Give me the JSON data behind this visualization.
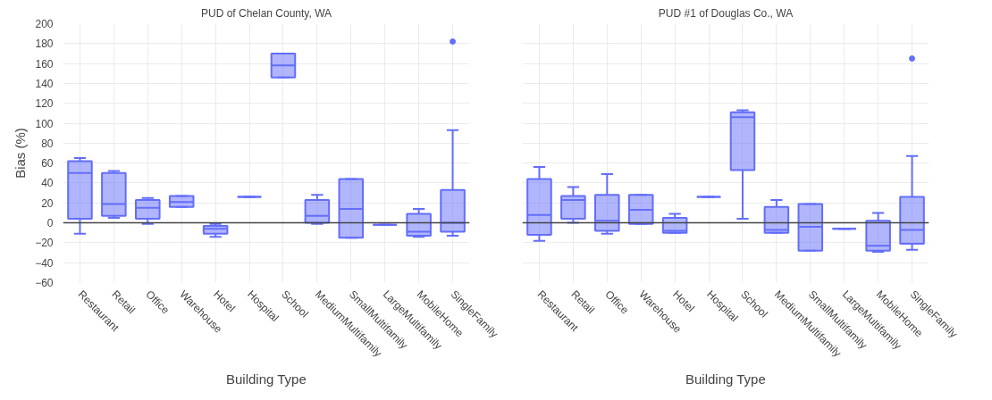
{
  "chart_data": [
    {
      "type": "box",
      "title": "PUD of Chelan County, WA",
      "xlabel": "Building Type",
      "ylabel": "Bias (%)",
      "categories": [
        "Restaurant",
        "Retail",
        "Office",
        "Warehouse",
        "Hotel",
        "Hospital",
        "School",
        "MediumMultifamily",
        "SmallMultifamily",
        "LargeMultifamily",
        "MobileHome",
        "SingleFamily"
      ],
      "boxes": [
        {
          "low": -11,
          "q1": 4,
          "median": 50,
          "q3": 62,
          "high": 65
        },
        {
          "low": 5,
          "q1": 7,
          "median": 19,
          "q3": 50,
          "high": 52
        },
        {
          "low": -1,
          "q1": 4,
          "median": 15,
          "q3": 23,
          "high": 25
        },
        {
          "low": 16,
          "q1": 16,
          "median": 21,
          "q3": 27,
          "high": 27
        },
        {
          "low": -14,
          "q1": -11,
          "median": -6,
          "q3": -3,
          "high": -1
        },
        {
          "low": 26,
          "q1": 26,
          "median": 26,
          "q3": 26,
          "high": 26
        },
        {
          "low": 146,
          "q1": 146,
          "median": 158,
          "q3": 170,
          "high": 170
        },
        {
          "low": -1,
          "q1": 0,
          "median": 7,
          "q3": 23,
          "high": 28
        },
        {
          "low": -15,
          "q1": -15,
          "median": 14,
          "q3": 44,
          "high": 44
        },
        {
          "low": -2,
          "q1": -2,
          "median": -2,
          "q3": -2,
          "high": -2
        },
        {
          "low": -14,
          "q1": -13,
          "median": -9,
          "q3": 9,
          "high": 14
        },
        {
          "low": -13,
          "q1": -9,
          "median": 0,
          "q3": 33,
          "high": 93,
          "outliers": [
            182
          ]
        }
      ],
      "color": "#636efa",
      "ylim": [
        -60,
        200
      ],
      "yticks": [
        -60,
        -40,
        -20,
        0,
        20,
        40,
        60,
        80,
        100,
        120,
        140,
        160,
        180,
        200
      ],
      "grid": true,
      "ref_lines": [
        {
          "axis": "y",
          "value": 0
        }
      ]
    },
    {
      "type": "box",
      "title": "PUD #1 of Douglas Co., WA",
      "xlabel": "Building Type",
      "categories": [
        "Restaurant",
        "Retail",
        "Office",
        "Warehouse",
        "Hotel",
        "Hospital",
        "School",
        "MediumMultifamily",
        "SmallMultifamily",
        "LargeMultifamily",
        "MobileHome",
        "SingleFamily"
      ],
      "boxes": [
        {
          "low": -18,
          "q1": -12,
          "median": 8,
          "q3": 44,
          "high": 56
        },
        {
          "low": 0,
          "q1": 4,
          "median": 23,
          "q3": 27,
          "high": 36
        },
        {
          "low": -11,
          "q1": -8,
          "median": 2,
          "q3": 28,
          "high": 49
        },
        {
          "low": -1,
          "q1": -1,
          "median": 13,
          "q3": 28,
          "high": 28
        },
        {
          "low": -10,
          "q1": -10,
          "median": -8,
          "q3": 5,
          "high": 9
        },
        {
          "low": 26,
          "q1": 26,
          "median": 26,
          "q3": 26,
          "high": 26
        },
        {
          "low": 4,
          "q1": 53,
          "median": 106,
          "q3": 111,
          "high": 113
        },
        {
          "low": -10,
          "q1": -10,
          "median": -7,
          "q3": 16,
          "high": 23
        },
        {
          "low": -28,
          "q1": -28,
          "median": -4,
          "q3": 19,
          "high": 19
        },
        {
          "low": -6,
          "q1": -6,
          "median": -6,
          "q3": -6,
          "high": -6
        },
        {
          "low": -29,
          "q1": -28,
          "median": -23,
          "q3": 2,
          "high": 10
        },
        {
          "low": -27,
          "q1": -21,
          "median": -7,
          "q3": 26,
          "high": 67,
          "outliers": [
            165
          ]
        }
      ],
      "color": "#636efa",
      "ylim": [
        -60,
        200
      ],
      "yticks": [
        -60,
        -40,
        -20,
        0,
        20,
        40,
        60,
        80,
        100,
        120,
        140,
        160,
        180,
        200
      ],
      "grid": true,
      "tick_labels": "x",
      "ref_lines": [
        {
          "axis": "y",
          "value": 0
        }
      ]
    }
  ]
}
